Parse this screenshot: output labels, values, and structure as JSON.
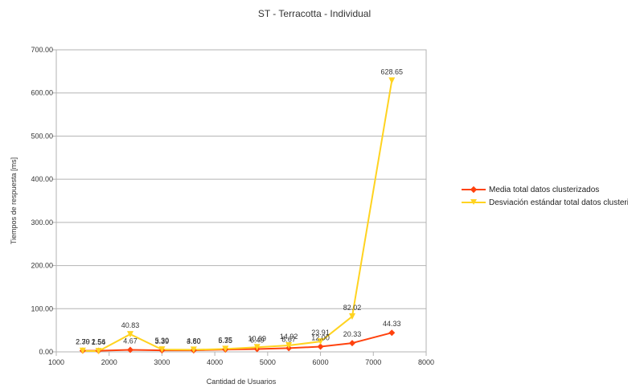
{
  "chart_data": {
    "type": "line",
    "title": "ST - Terracotta - Individual",
    "xlabel": "Cantidad de Usuarios",
    "ylabel": "Tiempos de respuesta [ms]",
    "xlim": [
      1000,
      8000
    ],
    "ylim": [
      0,
      700
    ],
    "x_ticks": [
      "1000",
      "2000",
      "3000",
      "4000",
      "5000",
      "6000",
      "7000",
      "8000"
    ],
    "y_ticks": [
      "0.00",
      "100.00",
      "200.00",
      "300.00",
      "400.00",
      "500.00",
      "600.00",
      "700.00"
    ],
    "grid": "horizontal",
    "legend_position": "right",
    "series": [
      {
        "name": "Media total datos clusterizados",
        "color": "#ff420e",
        "marker": "diamond",
        "x": [
          1500,
          1800,
          2400,
          3000,
          3600,
          4200,
          4800,
          5400,
          6000,
          6600,
          7350
        ],
        "values": [
          2.7,
          2.56,
          4.67,
          3.39,
          3.6,
          5.35,
          6.49,
          8.67,
          12.0,
          20.33,
          44.33
        ],
        "labels": [
          "2.70",
          "2.56",
          "4.67",
          "3.39",
          "3.60",
          "5.35",
          "6.49",
          "8.67",
          "12.00",
          "20.33",
          "44.33"
        ]
      },
      {
        "name": "Desviación estándar total datos clusterizados",
        "color": "#ffd320",
        "marker": "triangle-down",
        "x": [
          1500,
          1800,
          2400,
          3000,
          3600,
          4200,
          4800,
          5400,
          6000,
          6600,
          7350
        ],
        "values": [
          2.39,
          1.54,
          40.83,
          5.3,
          4.8,
          6.75,
          10.69,
          14.92,
          23.91,
          82.02,
          628.65
        ],
        "labels": [
          "2.39",
          "1.54",
          "40.83",
          "5.30",
          "4.80",
          "6.75",
          "10.69",
          "14.92",
          "23.91",
          "82.02",
          "628.65"
        ]
      }
    ]
  }
}
